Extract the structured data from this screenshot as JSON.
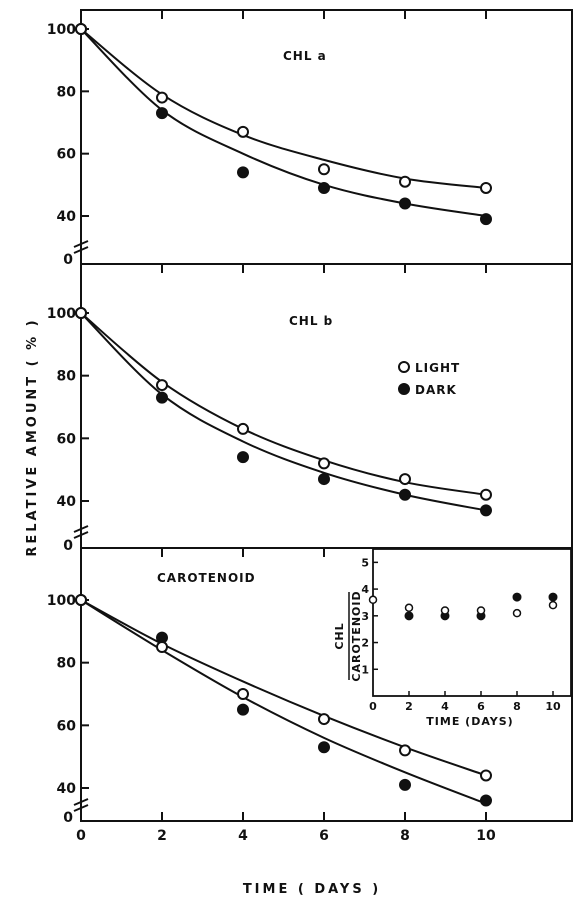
{
  "chart_data": {
    "type": "scatter",
    "y_axis_title": "RELATIVE AMOUNT ( % )",
    "x_axis_title": "TIME ( DAYS )",
    "x_ticks": [
      "0",
      "2",
      "4",
      "6",
      "8",
      "10"
    ],
    "legend": [
      {
        "label": "LIGHT",
        "marker": "open-circle"
      },
      {
        "label": "DARK",
        "marker": "filled-circle"
      }
    ],
    "panels": [
      {
        "title": "CHL a",
        "y_ticks": [
          "100",
          "80",
          "60",
          "40"
        ],
        "y_zero_label": "0",
        "ylim": [
          40,
          100
        ],
        "series": [
          {
            "name": "LIGHT",
            "x": [
              0,
              2,
              4,
              6,
              8,
              10
            ],
            "y": [
              100,
              78,
              67,
              55,
              51,
              49
            ],
            "fit": [
              100,
              79,
              66,
              58,
              52,
              49
            ]
          },
          {
            "name": "DARK",
            "x": [
              0,
              2,
              4,
              6,
              8,
              10
            ],
            "y": [
              100,
              73,
              54,
              49,
              44,
              39
            ],
            "fit": [
              100,
              74,
              60,
              50,
              44,
              40
            ]
          }
        ]
      },
      {
        "title": "CHL b",
        "y_ticks": [
          "100",
          "80",
          "60",
          "40"
        ],
        "y_zero_label": "0",
        "ylim": [
          40,
          100
        ],
        "series": [
          {
            "name": "LIGHT",
            "x": [
              0,
              2,
              4,
              6,
              8,
              10
            ],
            "y": [
              100,
              77,
              63,
              52,
              47,
              42
            ],
            "fit": [
              100,
              78,
              63,
              53,
              46,
              42
            ]
          },
          {
            "name": "DARK",
            "x": [
              0,
              2,
              4,
              6,
              8,
              10
            ],
            "y": [
              100,
              73,
              54,
              47,
              42,
              37
            ],
            "fit": [
              100,
              74,
              59,
              49,
              42,
              37
            ]
          }
        ]
      },
      {
        "title": "CAROTENOID",
        "y_ticks": [
          "100",
          "80",
          "60",
          "40"
        ],
        "y_zero_label": "0",
        "ylim": [
          40,
          100
        ],
        "series": [
          {
            "name": "LIGHT",
            "x": [
              0,
              2,
              4,
              6,
              8,
              10
            ],
            "y": [
              100,
              85,
              70,
              62,
              52,
              44
            ],
            "fit": [
              100,
              86,
              74,
              63,
              53,
              44
            ]
          },
          {
            "name": "DARK",
            "x": [
              0,
              2,
              4,
              6,
              8,
              10
            ],
            "y": [
              100,
              88,
              65,
              53,
              41,
              36
            ],
            "fit": [
              100,
              84,
              69,
              56,
              45,
              35
            ]
          }
        ]
      }
    ],
    "inset": {
      "y_title_top": "CHL",
      "y_title_bottom": "CAROTENOID",
      "x_title": "TIME (DAYS)",
      "x_ticks": [
        "0",
        "2",
        "4",
        "6",
        "8",
        "10"
      ],
      "y_ticks": [
        "1",
        "2",
        "3",
        "4",
        "5"
      ],
      "xlim": [
        0,
        11
      ],
      "ylim": [
        0,
        5.5
      ],
      "series": [
        {
          "name": "LIGHT",
          "x": [
            0,
            2,
            4,
            6,
            8,
            10
          ],
          "y": [
            3.6,
            3.3,
            3.2,
            3.2,
            3.1,
            3.4
          ]
        },
        {
          "name": "DARK",
          "x": [
            2,
            4,
            6,
            8,
            10
          ],
          "y": [
            3.0,
            3.0,
            3.0,
            3.7,
            3.7
          ]
        }
      ]
    }
  }
}
